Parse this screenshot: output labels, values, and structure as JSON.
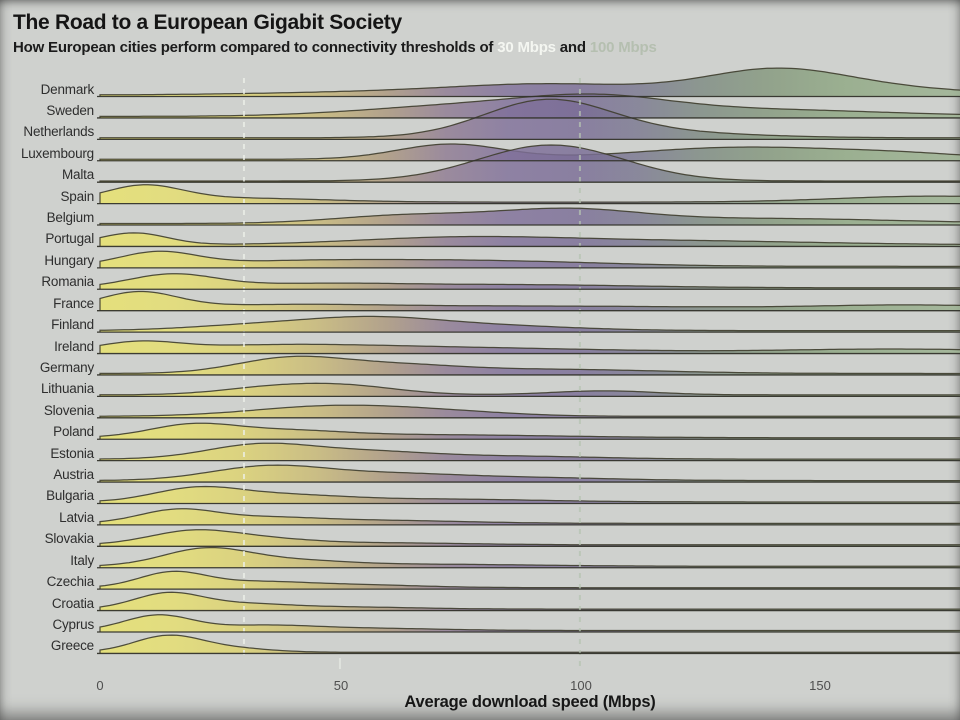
{
  "chart_data": {
    "type": "area",
    "variant": "ridgeline",
    "title": "The Road to a European Gigabit Society",
    "subtitle_prefix": "How European cities perform compared to connectivity thresholds of ",
    "threshold_30_label": "30 Mbps",
    "subtitle_and": " and ",
    "threshold_100_label": "100 Mbps",
    "xlabel": "Average download speed (Mbps)",
    "xtick_labels": [
      "0",
      "50",
      "100",
      "150"
    ],
    "xticks": [
      0,
      50,
      100,
      150
    ],
    "xlim": [
      0,
      179
    ],
    "legend": "none",
    "grid": "off",
    "thresholds": [
      {
        "value": 30,
        "label": "30 Mbps",
        "color": "#edf0ea"
      },
      {
        "value": 100,
        "label": "100 Mbps",
        "color": "#b6c3b1"
      }
    ],
    "stroke_color": "#3e3d2d",
    "baseline_color": "#33332b",
    "gradient_stops": [
      [
        0,
        "#e9e36a"
      ],
      [
        15,
        "#e6df6f"
      ],
      [
        30,
        "#ddd26f"
      ],
      [
        45,
        "#c9b975"
      ],
      [
        60,
        "#ab977e"
      ],
      [
        72,
        "#8f7b92"
      ],
      [
        85,
        "#80709a"
      ],
      [
        100,
        "#7a6d96"
      ],
      [
        112,
        "#7a7890"
      ],
      [
        125,
        "#7d8a82"
      ],
      [
        140,
        "#85997d"
      ],
      [
        155,
        "#8fa883"
      ],
      [
        179,
        "#9cb291"
      ]
    ],
    "series": [
      {
        "label": "Denmark",
        "base": 1.5,
        "components": [
          [
            60,
            25,
            3
          ],
          [
            95,
            20,
            10
          ],
          [
            141,
            15,
            25
          ],
          [
            168,
            16,
            5
          ]
        ]
      },
      {
        "label": "Sweden",
        "base": 1.5,
        "components": [
          [
            78,
            22,
            11
          ],
          [
            104,
            15,
            13
          ],
          [
            135,
            28,
            7
          ]
        ]
      },
      {
        "label": "Netherlands",
        "base": 1.5,
        "components": [
          [
            93,
            13,
            33
          ],
          [
            108,
            22,
            7
          ]
        ]
      },
      {
        "label": "Luxembourg",
        "base": 1.5,
        "components": [
          [
            73,
            11,
            15
          ],
          [
            134,
            22,
            12
          ],
          [
            168,
            14,
            4
          ]
        ]
      },
      {
        "label": "Malta",
        "base": 1.2,
        "components": [
          [
            94,
            15,
            36
          ]
        ]
      },
      {
        "label": "Spain",
        "base": 1.5,
        "components": [
          [
            9,
            8,
            15
          ],
          [
            28,
            18,
            4
          ],
          [
            174,
            20,
            6
          ]
        ]
      },
      {
        "label": "Belgium",
        "base": 1.5,
        "components": [
          [
            64,
            15,
            8
          ],
          [
            97,
            15,
            13
          ],
          [
            138,
            28,
            5
          ]
        ]
      },
      {
        "label": "Portugal",
        "base": 1.5,
        "components": [
          [
            7,
            7,
            12
          ],
          [
            75,
            22,
            7
          ],
          [
            120,
            30,
            4
          ]
        ]
      },
      {
        "label": "Hungary",
        "base": 1.5,
        "components": [
          [
            12,
            8,
            13
          ],
          [
            42,
            22,
            5
          ],
          [
            82,
            24,
            5
          ]
        ]
      },
      {
        "label": "Romania",
        "base": 1.5,
        "components": [
          [
            15,
            9,
            13
          ],
          [
            45,
            18,
            4
          ],
          [
            88,
            24,
            3
          ]
        ]
      },
      {
        "label": "France",
        "base": 1.5,
        "components": [
          [
            8,
            8,
            16
          ],
          [
            38,
            22,
            4
          ],
          [
            95,
            35,
            3
          ],
          [
            170,
            20,
            4
          ]
        ]
      },
      {
        "label": "Finland",
        "base": 1.5,
        "components": [
          [
            32,
            14,
            5
          ],
          [
            56,
            14,
            11
          ],
          [
            80,
            18,
            5
          ]
        ]
      },
      {
        "label": "Ireland",
        "base": 1.5,
        "components": [
          [
            8,
            8,
            8
          ],
          [
            35,
            22,
            6
          ],
          [
            75,
            28,
            4
          ],
          [
            165,
            22,
            3
          ]
        ]
      },
      {
        "label": "Germany",
        "base": 1.5,
        "components": [
          [
            39,
            11,
            14
          ],
          [
            60,
            14,
            8
          ],
          [
            95,
            22,
            4
          ]
        ]
      },
      {
        "label": "Lithuania",
        "base": 1.5,
        "components": [
          [
            36,
            11,
            7
          ],
          [
            52,
            11,
            8
          ],
          [
            105,
            11,
            4
          ]
        ]
      },
      {
        "label": "Slovenia",
        "base": 1.5,
        "components": [
          [
            48,
            16,
            10
          ],
          [
            72,
            14,
            4
          ]
        ]
      },
      {
        "label": "Poland",
        "base": 1.5,
        "components": [
          [
            19,
            9,
            12
          ],
          [
            38,
            12,
            6
          ],
          [
            68,
            26,
            3
          ]
        ]
      },
      {
        "label": "Estonia",
        "base": 1.5,
        "components": [
          [
            33,
            11,
            14
          ],
          [
            55,
            13,
            7
          ],
          [
            85,
            18,
            3
          ]
        ]
      },
      {
        "label": "Austria",
        "base": 1.5,
        "components": [
          [
            35,
            12,
            14
          ],
          [
            60,
            14,
            6
          ],
          [
            88,
            18,
            3
          ]
        ]
      },
      {
        "label": "Bulgaria",
        "base": 1.5,
        "components": [
          [
            20,
            9,
            13
          ],
          [
            38,
            12,
            6
          ],
          [
            68,
            22,
            3
          ]
        ]
      },
      {
        "label": "Latvia",
        "base": 1.5,
        "components": [
          [
            16,
            8,
            13
          ],
          [
            34,
            11,
            5
          ],
          [
            58,
            18,
            3
          ]
        ]
      },
      {
        "label": "Slovakia",
        "base": 1.5,
        "components": [
          [
            19,
            9,
            13
          ],
          [
            34,
            10,
            5
          ],
          [
            58,
            18,
            2
          ]
        ]
      },
      {
        "label": "Italy",
        "base": 1.5,
        "components": [
          [
            22,
            9,
            17
          ],
          [
            40,
            11,
            5
          ],
          [
            68,
            22,
            2
          ]
        ]
      },
      {
        "label": "Czechia",
        "base": 1.5,
        "components": [
          [
            15,
            7,
            15
          ],
          [
            32,
            10,
            5
          ],
          [
            52,
            14,
            3
          ]
        ]
      },
      {
        "label": "Croatia",
        "base": 1.5,
        "components": [
          [
            14,
            7,
            15
          ],
          [
            29,
            10,
            5
          ],
          [
            52,
            14,
            2
          ]
        ]
      },
      {
        "label": "Cyprus",
        "base": 1.5,
        "components": [
          [
            12,
            7,
            15
          ],
          [
            34,
            11,
            5
          ],
          [
            58,
            14,
            2
          ]
        ]
      },
      {
        "label": "Greece",
        "base": 1.2,
        "components": [
          [
            14,
            7,
            16
          ],
          [
            27,
            8,
            4
          ]
        ]
      }
    ]
  }
}
